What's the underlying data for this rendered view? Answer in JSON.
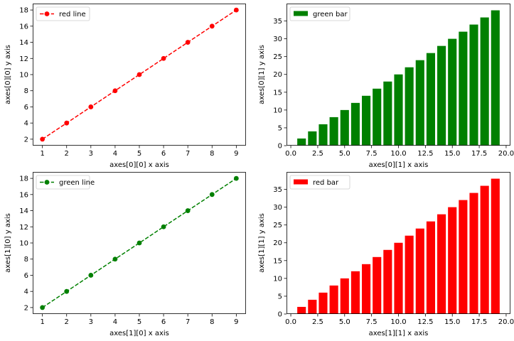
{
  "chart_data": [
    {
      "type": "line",
      "position": "top-left",
      "x": [
        1,
        2,
        3,
        4,
        5,
        6,
        7,
        8,
        9
      ],
      "series": [
        {
          "name": "red line",
          "values": [
            2,
            4,
            6,
            8,
            10,
            12,
            14,
            16,
            18
          ],
          "color": "#ff0000"
        }
      ],
      "line_style": "dashed",
      "marker": "circle",
      "xlabel": "axes[0][0] x axis",
      "ylabel": "axes[0][0] y axis",
      "xlim": [
        0.6,
        9.4
      ],
      "ylim": [
        1.2,
        18.8
      ],
      "xticks": [
        1,
        2,
        3,
        4,
        5,
        6,
        7,
        8,
        9
      ],
      "yticks": [
        2,
        4,
        6,
        8,
        10,
        12,
        14,
        16,
        18
      ],
      "xtick_labels": [
        "1",
        "2",
        "3",
        "4",
        "5",
        "6",
        "7",
        "8",
        "9"
      ],
      "ytick_labels": [
        "2",
        "4",
        "6",
        "8",
        "10",
        "12",
        "14",
        "16",
        "18"
      ],
      "legend": "upper-left",
      "grid": false
    },
    {
      "type": "bar",
      "position": "top-right",
      "x": [
        1,
        2,
        3,
        4,
        5,
        6,
        7,
        8,
        9,
        10,
        11,
        12,
        13,
        14,
        15,
        16,
        17,
        18,
        19
      ],
      "series": [
        {
          "name": "green bar",
          "values": [
            2,
            4,
            6,
            8,
            10,
            12,
            14,
            16,
            18,
            20,
            22,
            24,
            26,
            28,
            30,
            32,
            34,
            36,
            38
          ],
          "color": "#008000"
        }
      ],
      "bar_width": 0.8,
      "xlabel": "axes[0][1] x axis",
      "ylabel": "axes[0][1] y axis",
      "xlim": [
        -0.4,
        20.4
      ],
      "ylim": [
        0,
        39.9
      ],
      "xticks": [
        0,
        2.5,
        5,
        7.5,
        10,
        12.5,
        15,
        17.5,
        20
      ],
      "yticks": [
        0,
        5,
        10,
        15,
        20,
        25,
        30,
        35
      ],
      "xtick_labels": [
        "0.0",
        "2.5",
        "5.0",
        "7.5",
        "10.0",
        "12.5",
        "15.0",
        "17.5",
        "20.0"
      ],
      "ytick_labels": [
        "0",
        "5",
        "10",
        "15",
        "20",
        "25",
        "30",
        "35"
      ],
      "legend": "upper-left",
      "grid": false
    },
    {
      "type": "line",
      "position": "bottom-left",
      "x": [
        1,
        2,
        3,
        4,
        5,
        6,
        7,
        8,
        9
      ],
      "series": [
        {
          "name": "green line",
          "values": [
            2,
            4,
            6,
            8,
            10,
            12,
            14,
            16,
            18
          ],
          "color": "#008000"
        }
      ],
      "line_style": "dashed",
      "marker": "circle",
      "xlabel": "axes[1][0] x axis",
      "ylabel": "axes[1][0] y axis",
      "xlim": [
        0.6,
        9.4
      ],
      "ylim": [
        1.2,
        18.8
      ],
      "xticks": [
        1,
        2,
        3,
        4,
        5,
        6,
        7,
        8,
        9
      ],
      "yticks": [
        2,
        4,
        6,
        8,
        10,
        12,
        14,
        16,
        18
      ],
      "xtick_labels": [
        "1",
        "2",
        "3",
        "4",
        "5",
        "6",
        "7",
        "8",
        "9"
      ],
      "ytick_labels": [
        "2",
        "4",
        "6",
        "8",
        "10",
        "12",
        "14",
        "16",
        "18"
      ],
      "legend": "upper-left",
      "grid": false
    },
    {
      "type": "bar",
      "position": "bottom-right",
      "x": [
        1,
        2,
        3,
        4,
        5,
        6,
        7,
        8,
        9,
        10,
        11,
        12,
        13,
        14,
        15,
        16,
        17,
        18,
        19
      ],
      "series": [
        {
          "name": "red bar",
          "values": [
            2,
            4,
            6,
            8,
            10,
            12,
            14,
            16,
            18,
            20,
            22,
            24,
            26,
            28,
            30,
            32,
            34,
            36,
            38
          ],
          "color": "#ff0000"
        }
      ],
      "bar_width": 0.8,
      "xlabel": "axes[1][1] x axis",
      "ylabel": "axes[1][1] y axis",
      "xlim": [
        -0.4,
        20.4
      ],
      "ylim": [
        0,
        39.9
      ],
      "xticks": [
        0,
        2.5,
        5,
        7.5,
        10,
        12.5,
        15,
        17.5,
        20
      ],
      "yticks": [
        0,
        5,
        10,
        15,
        20,
        25,
        30,
        35
      ],
      "xtick_labels": [
        "0.0",
        "2.5",
        "5.0",
        "7.5",
        "10.0",
        "12.5",
        "15.0",
        "17.5",
        "20.0"
      ],
      "ytick_labels": [
        "0",
        "5",
        "10",
        "15",
        "20",
        "25",
        "30",
        "35"
      ],
      "legend": "upper-left",
      "grid": false
    }
  ]
}
